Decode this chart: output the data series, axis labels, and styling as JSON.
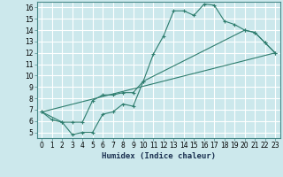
{
  "xlabel": "Humidex (Indice chaleur)",
  "bg_color": "#cce8ec",
  "grid_color": "#ffffff",
  "line_color": "#2e7d6e",
  "xlim": [
    -0.5,
    23.5
  ],
  "ylim": [
    4.5,
    16.5
  ],
  "xticks": [
    0,
    1,
    2,
    3,
    4,
    5,
    6,
    7,
    8,
    9,
    10,
    11,
    12,
    13,
    14,
    15,
    16,
    17,
    18,
    19,
    20,
    21,
    22,
    23
  ],
  "yticks": [
    5,
    6,
    7,
    8,
    9,
    10,
    11,
    12,
    13,
    14,
    15,
    16
  ],
  "line1_x": [
    0,
    1,
    2,
    3,
    4,
    5,
    6,
    7,
    8,
    9,
    10,
    11,
    12,
    13,
    14,
    15,
    16,
    17,
    18,
    19,
    20,
    21,
    22,
    23
  ],
  "line1_y": [
    6.8,
    6.1,
    5.9,
    4.8,
    5.0,
    5.0,
    6.6,
    6.8,
    7.5,
    7.3,
    9.5,
    11.9,
    13.5,
    15.7,
    15.7,
    15.3,
    16.3,
    16.2,
    14.8,
    14.5,
    14.0,
    13.8,
    12.9,
    12.0
  ],
  "line2_x": [
    0,
    2,
    3,
    4,
    5,
    6,
    7,
    8,
    9,
    10,
    20,
    21,
    22,
    23
  ],
  "line2_y": [
    6.8,
    5.9,
    5.9,
    5.9,
    7.8,
    8.3,
    8.3,
    8.5,
    8.5,
    9.5,
    14.0,
    13.8,
    12.9,
    12.0
  ],
  "line3_x": [
    0,
    23
  ],
  "line3_y": [
    6.8,
    12.0
  ]
}
